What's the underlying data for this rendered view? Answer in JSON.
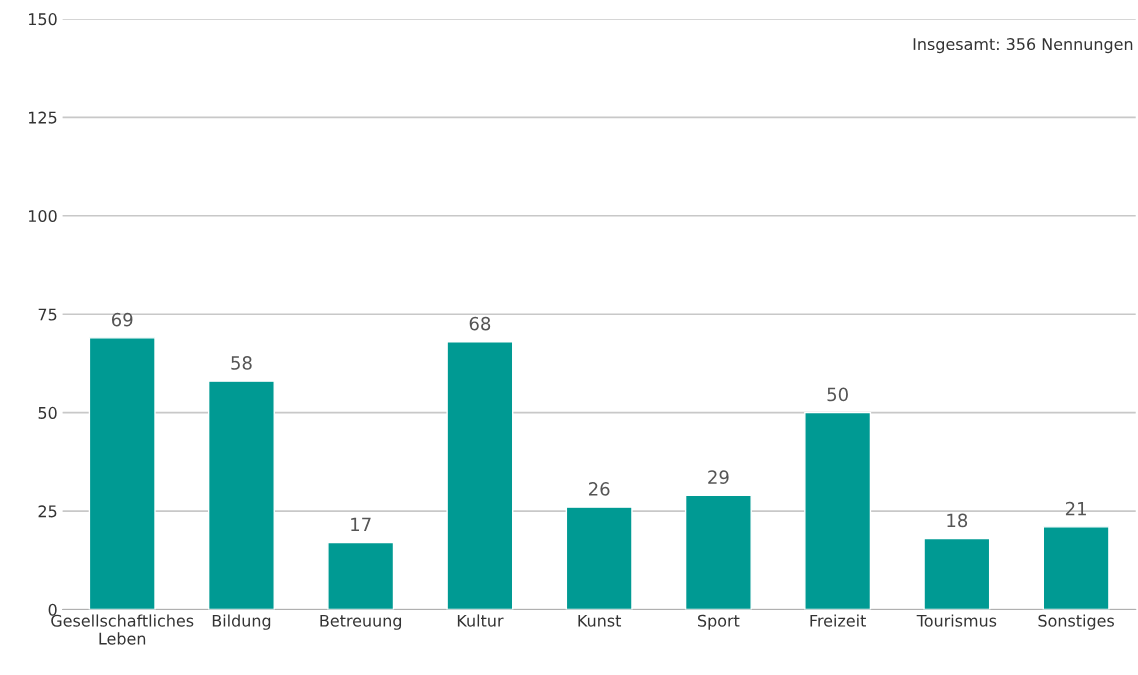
{
  "chart_data": {
    "type": "bar",
    "categories": [
      "Gesellschaftliches\nLeben",
      "Bildung",
      "Betreuung",
      "Kultur",
      "Kunst",
      "Sport",
      "Freizeit",
      "Tourismus",
      "Sonstiges"
    ],
    "values": [
      69,
      58,
      17,
      68,
      26,
      29,
      50,
      18,
      21
    ],
    "color": "#009a93",
    "ylim": [
      0,
      150
    ],
    "yticks": [
      0,
      25,
      50,
      75,
      100,
      125,
      150
    ],
    "grid": "y",
    "data_labels": true,
    "annotations": [
      "Insgesamt: 356 Nennungen"
    ]
  }
}
